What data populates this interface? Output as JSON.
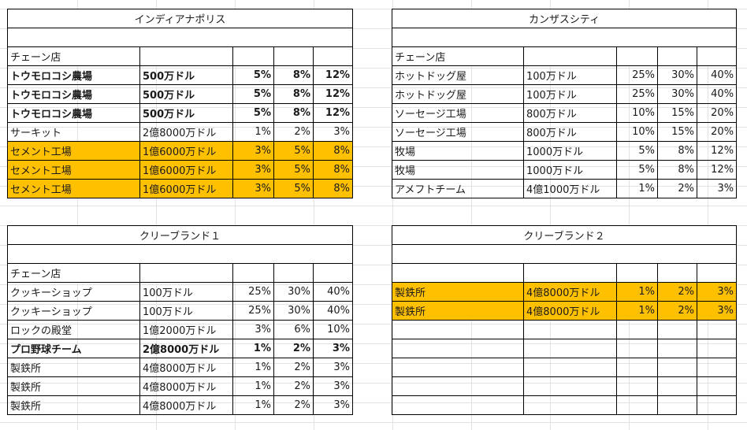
{
  "highlight_color": "#ffc000",
  "blocks": [
    {
      "title": "インディアナポリス",
      "header": "チェーン店",
      "rows": [
        {
          "name": "トウモロコシ農場",
          "cost": "500万ドル",
          "p1": "5%",
          "p2": "8%",
          "p3": "12%",
          "bold": true,
          "highlight": false
        },
        {
          "name": "トウモロコシ農場",
          "cost": "500万ドル",
          "p1": "5%",
          "p2": "8%",
          "p3": "12%",
          "bold": true,
          "highlight": false
        },
        {
          "name": "トウモロコシ農場",
          "cost": "500万ドル",
          "p1": "5%",
          "p2": "8%",
          "p3": "12%",
          "bold": true,
          "highlight": false
        },
        {
          "name": "サーキット",
          "cost": "2億8000万ドル",
          "p1": "1%",
          "p2": "2%",
          "p3": "3%",
          "bold": false,
          "highlight": false
        },
        {
          "name": "セメント工場",
          "cost": "1億6000万ドル",
          "p1": "3%",
          "p2": "5%",
          "p3": "8%",
          "bold": false,
          "highlight": true
        },
        {
          "name": "セメント工場",
          "cost": "1億6000万ドル",
          "p1": "3%",
          "p2": "5%",
          "p3": "8%",
          "bold": false,
          "highlight": true
        },
        {
          "name": "セメント工場",
          "cost": "1億6000万ドル",
          "p1": "3%",
          "p2": "5%",
          "p3": "8%",
          "bold": false,
          "highlight": true
        }
      ]
    },
    {
      "title": "カンザスシティ",
      "header": "チェーン店",
      "rows": [
        {
          "name": "ホットドッグ屋",
          "cost": "100万ドル",
          "p1": "25%",
          "p2": "30%",
          "p3": "40%",
          "bold": false,
          "highlight": false
        },
        {
          "name": "ホットドッグ屋",
          "cost": "100万ドル",
          "p1": "25%",
          "p2": "30%",
          "p3": "40%",
          "bold": false,
          "highlight": false
        },
        {
          "name": "ソーセージ工場",
          "cost": "800万ドル",
          "p1": "10%",
          "p2": "15%",
          "p3": "20%",
          "bold": false,
          "highlight": false
        },
        {
          "name": "ソーセージ工場",
          "cost": "800万ドル",
          "p1": "10%",
          "p2": "15%",
          "p3": "20%",
          "bold": false,
          "highlight": false
        },
        {
          "name": "牧場",
          "cost": "1000万ドル",
          "p1": "5%",
          "p2": "8%",
          "p3": "12%",
          "bold": false,
          "highlight": false
        },
        {
          "name": "牧場",
          "cost": "1000万ドル",
          "p1": "5%",
          "p2": "8%",
          "p3": "12%",
          "bold": false,
          "highlight": false
        },
        {
          "name": "アメフトチーム",
          "cost": "4億1000万ドル",
          "p1": "1%",
          "p2": "2%",
          "p3": "3%",
          "bold": false,
          "highlight": false
        }
      ]
    },
    {
      "title": "クリーブランド１",
      "header": "チェーン店",
      "rows": [
        {
          "name": "クッキーショップ",
          "cost": "100万ドル",
          "p1": "25%",
          "p2": "30%",
          "p3": "40%",
          "bold": false,
          "highlight": false
        },
        {
          "name": "クッキーショップ",
          "cost": "100万ドル",
          "p1": "25%",
          "p2": "30%",
          "p3": "40%",
          "bold": false,
          "highlight": false
        },
        {
          "name": "ロックの殿堂",
          "cost": "1億2000万ドル",
          "p1": "3%",
          "p2": "6%",
          "p3": "10%",
          "bold": false,
          "highlight": false
        },
        {
          "name": "プロ野球チーム",
          "cost": "2億8000万ドル",
          "p1": "1%",
          "p2": "2%",
          "p3": "3%",
          "bold": true,
          "highlight": false
        },
        {
          "name": "製鉄所",
          "cost": "4億8000万ドル",
          "p1": "1%",
          "p2": "2%",
          "p3": "3%",
          "bold": false,
          "highlight": false
        },
        {
          "name": "製鉄所",
          "cost": "4億8000万ドル",
          "p1": "1%",
          "p2": "2%",
          "p3": "3%",
          "bold": false,
          "highlight": false
        },
        {
          "name": "製鉄所",
          "cost": "4億8000万ドル",
          "p1": "1%",
          "p2": "2%",
          "p3": "3%",
          "bold": false,
          "highlight": false
        }
      ]
    },
    {
      "title": "クリーブランド２",
      "header": "",
      "rows": [
        {
          "name": "製鉄所",
          "cost": "4億8000万ドル",
          "p1": "1%",
          "p2": "2%",
          "p3": "3%",
          "bold": false,
          "highlight": true
        },
        {
          "name": "製鉄所",
          "cost": "4億8000万ドル",
          "p1": "1%",
          "p2": "2%",
          "p3": "3%",
          "bold": false,
          "highlight": true
        },
        {
          "name": "",
          "cost": "",
          "p1": "",
          "p2": "",
          "p3": "",
          "bold": false,
          "highlight": false
        },
        {
          "name": "",
          "cost": "",
          "p1": "",
          "p2": "",
          "p3": "",
          "bold": false,
          "highlight": false
        },
        {
          "name": "",
          "cost": "",
          "p1": "",
          "p2": "",
          "p3": "",
          "bold": false,
          "highlight": false
        },
        {
          "name": "",
          "cost": "",
          "p1": "",
          "p2": "",
          "p3": "",
          "bold": false,
          "highlight": false
        },
        {
          "name": "",
          "cost": "",
          "p1": "",
          "p2": "",
          "p3": "",
          "bold": false,
          "highlight": false
        }
      ]
    }
  ]
}
